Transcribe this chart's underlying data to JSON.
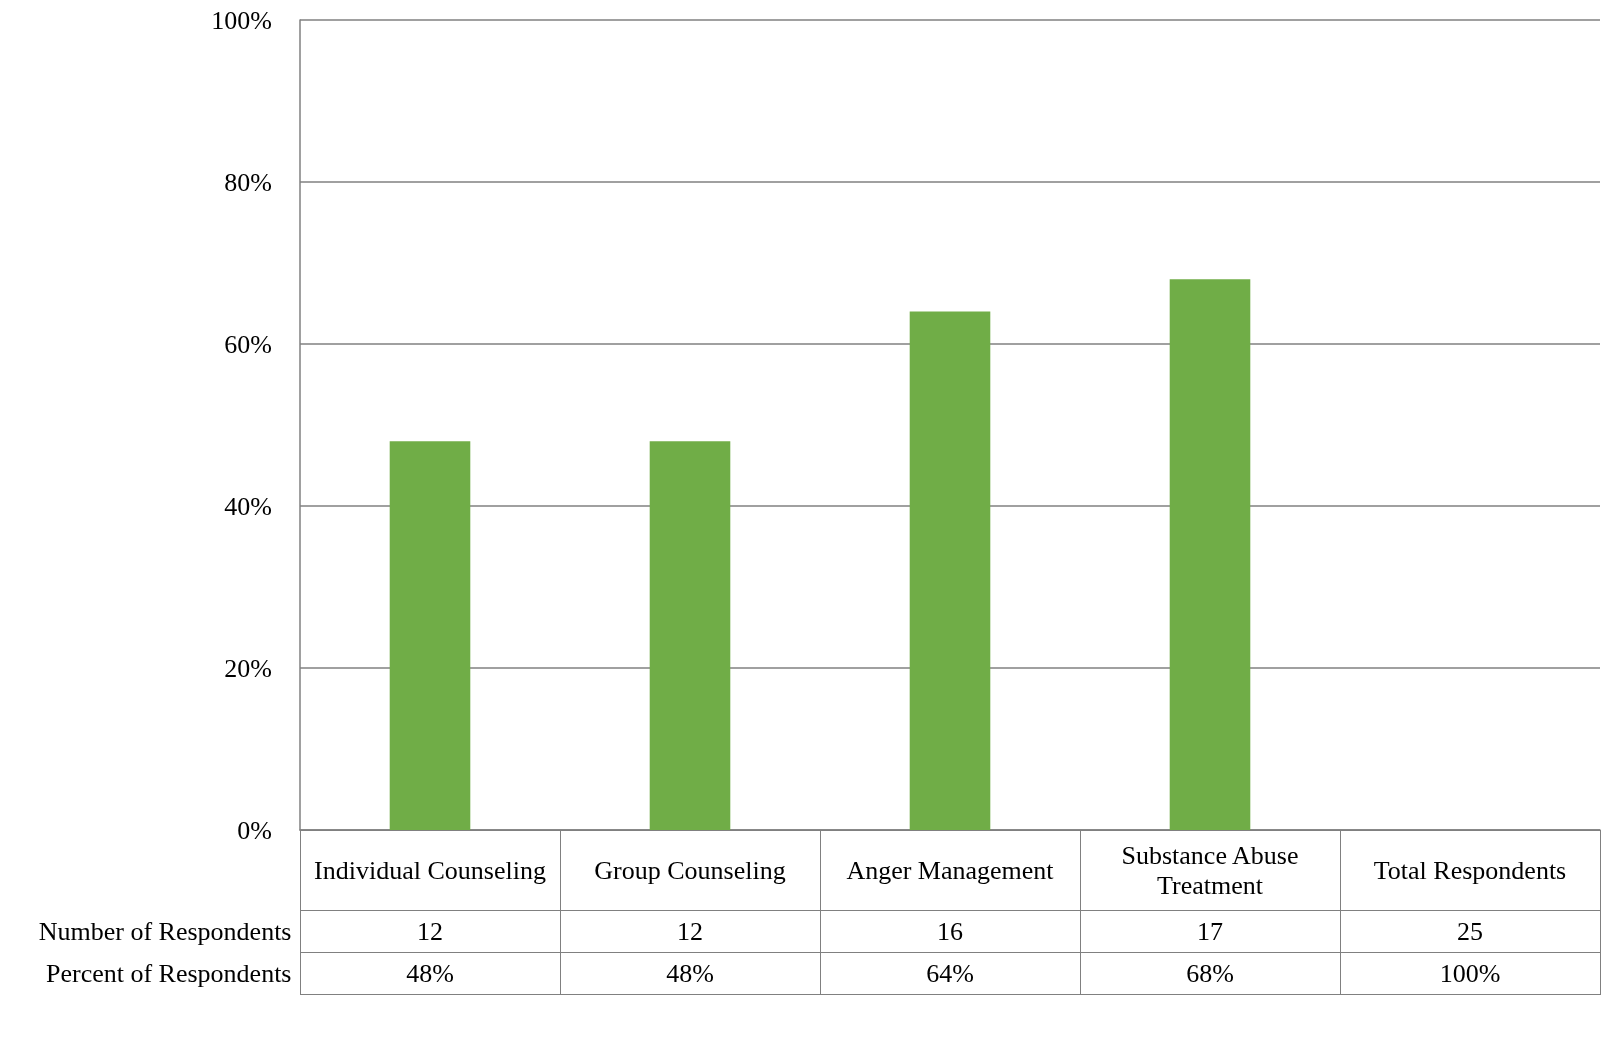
{
  "chart_data": {
    "type": "bar",
    "categories": [
      "Individual Counseling",
      "Group Counseling",
      "Anger Management",
      "Substance Abuse Treatment",
      "Total Respondents"
    ],
    "series": [
      {
        "name": "Percent of Respondents",
        "color": "#70ad47",
        "values": [
          48,
          48,
          64,
          68,
          null
        ],
        "value_labels": [
          "48%",
          "48%",
          "64%",
          "68%",
          "100%"
        ]
      }
    ],
    "ylim": [
      0,
      100
    ],
    "yticks": [
      {
        "value": 0,
        "label": "0%"
      },
      {
        "value": 20,
        "label": "20%"
      },
      {
        "value": 40,
        "label": "40%"
      },
      {
        "value": 60,
        "label": "60%"
      },
      {
        "value": 80,
        "label": "80%"
      },
      {
        "value": 100,
        "label": "100%"
      }
    ],
    "grid": "y",
    "annotations": [
      "Number of Respondents",
      "12",
      "12",
      "16",
      "17",
      "25"
    ]
  }
}
